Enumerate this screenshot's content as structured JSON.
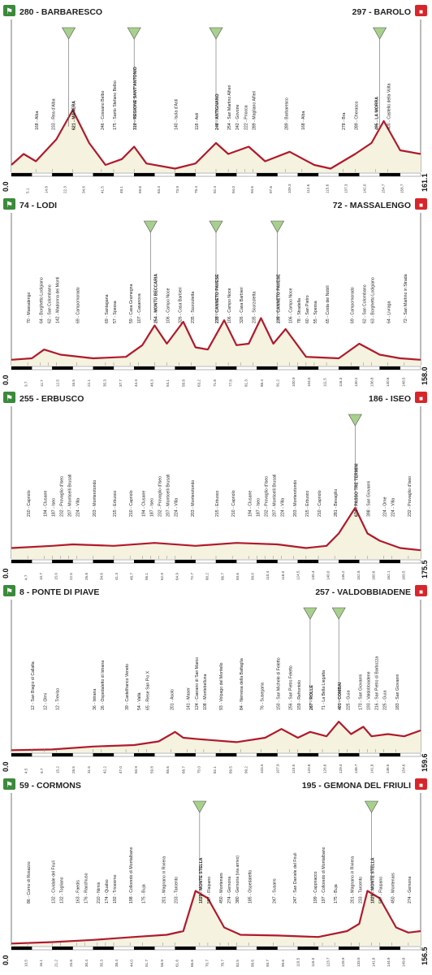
{
  "colors": {
    "fill": "#f5f3df",
    "line": "#b01a2c",
    "start_badge": "#3b8a3b",
    "finish_badge": "#d7262b",
    "gpm_badge": "#a8d08d",
    "ruler": "#000000"
  },
  "chart_data": [
    {
      "type": "area",
      "start": {
        "alt": "280",
        "name": "BARBARESCO"
      },
      "finish": {
        "alt": "297",
        "name": "BAROLO"
      },
      "km_start": "0.0",
      "km_end": "161.1",
      "gpm_x": [
        0.14,
        0.3,
        0.5,
        0.9
      ],
      "profile": [
        [
          0,
          0.1
        ],
        [
          0.03,
          0.25
        ],
        [
          0.06,
          0.15
        ],
        [
          0.11,
          0.45
        ],
        [
          0.15,
          0.85
        ],
        [
          0.19,
          0.4
        ],
        [
          0.23,
          0.1
        ],
        [
          0.27,
          0.18
        ],
        [
          0.3,
          0.35
        ],
        [
          0.33,
          0.12
        ],
        [
          0.4,
          0.05
        ],
        [
          0.45,
          0.12
        ],
        [
          0.5,
          0.4
        ],
        [
          0.53,
          0.25
        ],
        [
          0.58,
          0.35
        ],
        [
          0.62,
          0.15
        ],
        [
          0.68,
          0.28
        ],
        [
          0.74,
          0.1
        ],
        [
          0.78,
          0.05
        ],
        [
          0.84,
          0.25
        ],
        [
          0.88,
          0.4
        ],
        [
          0.91,
          0.7
        ],
        [
          0.95,
          0.3
        ],
        [
          1.0,
          0.25
        ]
      ],
      "labels": [
        {
          "x": 0.06,
          "t": "168 - Alba"
        },
        {
          "x": 0.1,
          "t": "233 - Rea d'Alba"
        },
        {
          "x": 0.15,
          "t": "621 - MANERA",
          "b": true
        },
        {
          "x": 0.22,
          "t": "246 - Cossano Belbo"
        },
        {
          "x": 0.25,
          "t": "175 - Santo Stefano Belbo"
        },
        {
          "x": 0.3,
          "t": "310 - REGIONE SANT'ANTONIO",
          "b": true
        },
        {
          "x": 0.4,
          "t": "140 - Isola d'Asti"
        },
        {
          "x": 0.45,
          "t": "118 - Asti"
        },
        {
          "x": 0.5,
          "t": "246 - ANTIGNANO",
          "b": true
        },
        {
          "x": 0.53,
          "t": "254 - San Martino Alfieri"
        },
        {
          "x": 0.55,
          "t": "242 - Govone"
        },
        {
          "x": 0.57,
          "t": "222 - Priocca"
        },
        {
          "x": 0.59,
          "t": "289 - Magliano Alfieri"
        },
        {
          "x": 0.67,
          "t": "289 - Barbaresco"
        },
        {
          "x": 0.71,
          "t": "168 - Alba"
        },
        {
          "x": 0.81,
          "t": "278 - Bra"
        },
        {
          "x": 0.84,
          "t": "289 - Cherasco"
        },
        {
          "x": 0.89,
          "t": "495 - LA MORRA",
          "b": true
        },
        {
          "x": 0.92,
          "t": "400 - Castello della Volta"
        }
      ],
      "ticks": [
        "5.1",
        "14.8",
        "22.3",
        "34.6",
        "41.5",
        "48.1",
        "59.6",
        "63.3",
        "73.9",
        "78.4",
        "92.4",
        "94.0",
        "94.6",
        "97.6",
        "109.3",
        "112.6",
        "115.6",
        "137.3",
        "142.0",
        "154.7",
        "158.7"
      ]
    },
    {
      "type": "area",
      "start": {
        "alt": "74",
        "name": "LODI"
      },
      "finish": {
        "alt": "72",
        "name": "MASSALENGO"
      },
      "km_start": "0.0",
      "km_end": "158.0",
      "gpm_x": [
        0.34,
        0.5,
        0.65
      ],
      "profile": [
        [
          0,
          0.08
        ],
        [
          0.05,
          0.1
        ],
        [
          0.08,
          0.22
        ],
        [
          0.12,
          0.15
        ],
        [
          0.2,
          0.1
        ],
        [
          0.28,
          0.12
        ],
        [
          0.32,
          0.28
        ],
        [
          0.35,
          0.55
        ],
        [
          0.38,
          0.3
        ],
        [
          0.42,
          0.6
        ],
        [
          0.45,
          0.25
        ],
        [
          0.48,
          0.22
        ],
        [
          0.52,
          0.62
        ],
        [
          0.55,
          0.28
        ],
        [
          0.58,
          0.3
        ],
        [
          0.61,
          0.65
        ],
        [
          0.64,
          0.3
        ],
        [
          0.67,
          0.5
        ],
        [
          0.72,
          0.12
        ],
        [
          0.8,
          0.1
        ],
        [
          0.85,
          0.3
        ],
        [
          0.9,
          0.15
        ],
        [
          0.95,
          0.1
        ],
        [
          1.0,
          0.08
        ]
      ],
      "labels": [
        {
          "x": 0.04,
          "t": "70 - Massalengo"
        },
        {
          "x": 0.07,
          "t": "64 - Borghetto Lodigiano"
        },
        {
          "x": 0.09,
          "t": "62 - San Colombano"
        },
        {
          "x": 0.11,
          "t": "142 - Madonna dei Monti"
        },
        {
          "x": 0.16,
          "t": "69 - Campomorado"
        },
        {
          "x": 0.23,
          "t": "69 - Santagana"
        },
        {
          "x": 0.25,
          "t": "57 - Spessa"
        },
        {
          "x": 0.29,
          "t": "59 - Casa Gramegna"
        },
        {
          "x": 0.31,
          "t": "107 - Casanova"
        },
        {
          "x": 0.35,
          "t": "254 - MONTÙ BECCARIA",
          "b": true
        },
        {
          "x": 0.38,
          "t": "106 - Campo Noce"
        },
        {
          "x": 0.41,
          "t": "326 - Casa Barbieri"
        },
        {
          "x": 0.44,
          "t": "235 - Scorzoletta"
        },
        {
          "x": 0.5,
          "t": "235 - CANNETO PAVESE",
          "b": true
        },
        {
          "x": 0.53,
          "t": "106 - Campo Noce"
        },
        {
          "x": 0.56,
          "t": "326 - Casa Barbieri"
        },
        {
          "x": 0.59,
          "t": "235 - Scorzoletta"
        },
        {
          "x": 0.65,
          "t": "235 - CANNETO PAVESE",
          "b": true
        },
        {
          "x": 0.68,
          "t": "106 - Campo Noce"
        },
        {
          "x": 0.7,
          "t": "78 - Stradella"
        },
        {
          "x": 0.72,
          "t": "60 - San Pietro"
        },
        {
          "x": 0.74,
          "t": "55 - Spessa"
        },
        {
          "x": 0.77,
          "t": "65 - Costa dei Nobili"
        },
        {
          "x": 0.83,
          "t": "69 - Campomorado"
        },
        {
          "x": 0.86,
          "t": "62 - San Colombano"
        },
        {
          "x": 0.88,
          "t": "63 - Borghetto Lodigiano"
        },
        {
          "x": 0.92,
          "t": "64 - Livraga"
        },
        {
          "x": 0.96,
          "t": "72 - San Martino in Strada"
        }
      ],
      "ticks": [
        "3.7",
        "11.7",
        "12.5",
        "16.5",
        "22.1",
        "35.3",
        "37.7",
        "44.3",
        "48.3",
        "54.1",
        "58.8",
        "63.2",
        "71.8",
        "77.8",
        "81.3",
        "88.4",
        "91.2",
        "100.9",
        "104.0",
        "111.5",
        "116.3",
        "130.2",
        "136.8",
        "140.6",
        "148.5"
      ]
    },
    {
      "type": "area",
      "start": {
        "alt": "255",
        "name": "ERBUSCO"
      },
      "finish": {
        "alt": "186",
        "name": "ISEO"
      },
      "km_start": "0.0",
      "km_end": "175.5",
      "gpm_x": [
        0.84
      ],
      "profile": [
        [
          0,
          0.15
        ],
        [
          0.1,
          0.18
        ],
        [
          0.15,
          0.2
        ],
        [
          0.25,
          0.18
        ],
        [
          0.35,
          0.22
        ],
        [
          0.45,
          0.18
        ],
        [
          0.55,
          0.22
        ],
        [
          0.65,
          0.2
        ],
        [
          0.72,
          0.15
        ],
        [
          0.77,
          0.18
        ],
        [
          0.8,
          0.35
        ],
        [
          0.84,
          0.7
        ],
        [
          0.87,
          0.35
        ],
        [
          0.9,
          0.25
        ],
        [
          0.95,
          0.15
        ],
        [
          1.0,
          0.12
        ]
      ],
      "labels": [
        {
          "x": 0.04,
          "t": "210 - Capriolo"
        },
        {
          "x": 0.08,
          "t": "194 - Clusane"
        },
        {
          "x": 0.1,
          "t": "187 - Iseo"
        },
        {
          "x": 0.12,
          "t": "232 - Provaglio d'Iseo"
        },
        {
          "x": 0.14,
          "t": "207 - Monticelli Brusati"
        },
        {
          "x": 0.16,
          "t": "224 - Villa"
        },
        {
          "x": 0.2,
          "t": "203 - Monterotondo"
        },
        {
          "x": 0.25,
          "t": "215 - Erbusco"
        },
        {
          "x": 0.29,
          "t": "210 - Capriolo"
        },
        {
          "x": 0.32,
          "t": "194 - Clusane"
        },
        {
          "x": 0.34,
          "t": "187 - Iseo"
        },
        {
          "x": 0.36,
          "t": "232 - Provaglio d'Iseo"
        },
        {
          "x": 0.38,
          "t": "207 - Monticelli Brusati"
        },
        {
          "x": 0.4,
          "t": "224 - Villa"
        },
        {
          "x": 0.44,
          "t": "203 - Monterotondo"
        },
        {
          "x": 0.5,
          "t": "215 - Erbusco"
        },
        {
          "x": 0.54,
          "t": "210 - Capriolo"
        },
        {
          "x": 0.58,
          "t": "194 - Clusane"
        },
        {
          "x": 0.6,
          "t": "187 - Iseo"
        },
        {
          "x": 0.62,
          "t": "232 - Provaglio d'Iseo"
        },
        {
          "x": 0.64,
          "t": "207 - Monticelli Brusati"
        },
        {
          "x": 0.66,
          "t": "224 - Villa"
        },
        {
          "x": 0.69,
          "t": "203 - Monterotondo"
        },
        {
          "x": 0.72,
          "t": "215 - Erbusco"
        },
        {
          "x": 0.75,
          "t": "210 - Capriolo"
        },
        {
          "x": 0.79,
          "t": "281 - Bevagilio"
        },
        {
          "x": 0.84,
          "t": "674 - PASSO TRE TERMINI",
          "b": true
        },
        {
          "x": 0.87,
          "t": "398 - San Giovanni"
        },
        {
          "x": 0.91,
          "t": "224 - Ome"
        },
        {
          "x": 0.93,
          "t": "224 - Villa"
        },
        {
          "x": 0.97,
          "t": "232 - Provaglio d'Iseo"
        }
      ],
      "ticks": [
        "4.7",
        "10.7",
        "15.0",
        "22.5",
        "26.8",
        "34.6",
        "41.3",
        "48.7",
        "56.1",
        "62.9",
        "64.9",
        "72.7",
        "80.2",
        "86.7",
        "93.6",
        "99.0",
        "110.4",
        "118.0",
        "124.5",
        "130.4",
        "140.0",
        "146.2",
        "152.8",
        "160.6",
        "162.1",
        "169.5"
      ]
    },
    {
      "type": "area",
      "start": {
        "alt": "8",
        "name": "PONTE DI PIAVE"
      },
      "finish": {
        "alt": "257",
        "name": "VALDOBBIADENE"
      },
      "km_start": "0.0",
      "km_end": "159.6",
      "gpm_x": [
        0.73,
        0.8
      ],
      "profile": [
        [
          0,
          0.03
        ],
        [
          0.1,
          0.04
        ],
        [
          0.2,
          0.08
        ],
        [
          0.3,
          0.1
        ],
        [
          0.36,
          0.15
        ],
        [
          0.4,
          0.28
        ],
        [
          0.42,
          0.2
        ],
        [
          0.46,
          0.18
        ],
        [
          0.55,
          0.14
        ],
        [
          0.62,
          0.2
        ],
        [
          0.66,
          0.32
        ],
        [
          0.7,
          0.2
        ],
        [
          0.73,
          0.28
        ],
        [
          0.77,
          0.22
        ],
        [
          0.8,
          0.42
        ],
        [
          0.83,
          0.25
        ],
        [
          0.86,
          0.35
        ],
        [
          0.88,
          0.22
        ],
        [
          0.92,
          0.25
        ],
        [
          0.96,
          0.22
        ],
        [
          1.0,
          0.3
        ]
      ],
      "labels": [
        {
          "x": 0.05,
          "t": "12 - San Biagio di Callalta"
        },
        {
          "x": 0.08,
          "t": "12 - Olmi"
        },
        {
          "x": 0.11,
          "t": "12 - Treviso"
        },
        {
          "x": 0.2,
          "t": "36 - Istrana"
        },
        {
          "x": 0.22,
          "t": "26 - Ospedaletto di Istrana"
        },
        {
          "x": 0.28,
          "t": "39 - Castelfranco Veneto"
        },
        {
          "x": 0.31,
          "t": "54 - Vallà"
        },
        {
          "x": 0.33,
          "t": "65 - Riese San Pio X"
        },
        {
          "x": 0.39,
          "t": "201 - Asolo"
        },
        {
          "x": 0.43,
          "t": "141 - Maser"
        },
        {
          "x": 0.45,
          "t": "124 - Caerano di San Marco"
        },
        {
          "x": 0.47,
          "t": "108 - Montebelluna"
        },
        {
          "x": 0.51,
          "t": "93 - Volpago del Montello"
        },
        {
          "x": 0.56,
          "t": "84 - Nervesa della Battaglia"
        },
        {
          "x": 0.61,
          "t": "76 - Susegana"
        },
        {
          "x": 0.65,
          "t": "150 - San Michele di Feletto"
        },
        {
          "x": 0.68,
          "t": "256 - San Pietro Feletto"
        },
        {
          "x": 0.7,
          "t": "159 - Refrontolo"
        },
        {
          "x": 0.73,
          "t": "267 - ROLLE",
          "b": true
        },
        {
          "x": 0.76,
          "t": "71 - La Bella Liegatta"
        },
        {
          "x": 0.8,
          "t": "401 - COMBAI",
          "b": true
        },
        {
          "x": 0.82,
          "t": "225 - Guia"
        },
        {
          "x": 0.85,
          "t": "170 - San Giovanni"
        },
        {
          "x": 0.87,
          "t": "193 - Valdobbiadene"
        },
        {
          "x": 0.89,
          "t": "216 - San Pietro di Barbozza"
        },
        {
          "x": 0.91,
          "t": "225 - Guia"
        },
        {
          "x": 0.94,
          "t": "183 - San Giovanni"
        }
      ],
      "ticks": [
        "4.5",
        "9.7",
        "15.2",
        "28.5",
        "31.5",
        "42.2",
        "47.0",
        "50.9",
        "59.8",
        "65.6",
        "68.7",
        "75.0",
        "82.1",
        "89.5",
        "99.2",
        "103.5",
        "107.9",
        "110.5",
        "120.8",
        "126.6",
        "129.4",
        "138.7",
        "141.8",
        "146.5",
        "154.6"
      ]
    },
    {
      "type": "area",
      "start": {
        "alt": "59",
        "name": "CORMONS"
      },
      "finish": {
        "alt": "195",
        "name": "GEMONA DEL FRIULI"
      },
      "km_start": "0.0",
      "km_end": "156.5",
      "gpm_x": [
        0.46,
        0.88
      ],
      "profile": [
        [
          0,
          0.03
        ],
        [
          0.1,
          0.05
        ],
        [
          0.2,
          0.08
        ],
        [
          0.3,
          0.12
        ],
        [
          0.38,
          0.15
        ],
        [
          0.42,
          0.2
        ],
        [
          0.45,
          0.75
        ],
        [
          0.48,
          0.65
        ],
        [
          0.52,
          0.25
        ],
        [
          0.56,
          0.15
        ],
        [
          0.65,
          0.14
        ],
        [
          0.75,
          0.12
        ],
        [
          0.82,
          0.2
        ],
        [
          0.85,
          0.3
        ],
        [
          0.87,
          0.75
        ],
        [
          0.9,
          0.65
        ],
        [
          0.94,
          0.25
        ],
        [
          0.97,
          0.18
        ],
        [
          1.0,
          0.2
        ]
      ],
      "labels": [
        {
          "x": 0.04,
          "t": "86 - Corno di Rosazzo"
        },
        {
          "x": 0.1,
          "t": "132 - Cividale del Friuli"
        },
        {
          "x": 0.12,
          "t": "132 - Togliano"
        },
        {
          "x": 0.16,
          "t": "163 - Faedis"
        },
        {
          "x": 0.18,
          "t": "176 - Racchiuso"
        },
        {
          "x": 0.21,
          "t": "210 - Nimis"
        },
        {
          "x": 0.23,
          "t": "174 - Qualso"
        },
        {
          "x": 0.25,
          "t": "192 - Tricesimo"
        },
        {
          "x": 0.29,
          "t": "198 - Colloredo di Montalbano"
        },
        {
          "x": 0.32,
          "t": "175 - Buja"
        },
        {
          "x": 0.37,
          "t": "201 - Magnano in Riviera"
        },
        {
          "x": 0.4,
          "t": "233 - Tarcento"
        },
        {
          "x": 0.46,
          "t": "1029 - MONTE STELLA",
          "b": true
        },
        {
          "x": 0.48,
          "t": "587 - Flaipano"
        },
        {
          "x": 0.51,
          "t": "450 - Montenars"
        },
        {
          "x": 0.53,
          "t": "274 - Gemona"
        },
        {
          "x": 0.55,
          "t": "380 - Gemona (via arrivo)"
        },
        {
          "x": 0.58,
          "t": "185 - Ospedaletto"
        },
        {
          "x": 0.64,
          "t": "247 - Susans"
        },
        {
          "x": 0.69,
          "t": "247 - San Daniele del Friuli"
        },
        {
          "x": 0.74,
          "t": "199 - Cappriacco"
        },
        {
          "x": 0.76,
          "t": "197 - Colloredo di Montalbano"
        },
        {
          "x": 0.79,
          "t": "175 - Buja"
        },
        {
          "x": 0.83,
          "t": "201 - Magnano in Riviera"
        },
        {
          "x": 0.85,
          "t": "233 - Tarcento"
        },
        {
          "x": 0.88,
          "t": "1029 - MONTE STELLA",
          "b": true
        },
        {
          "x": 0.9,
          "t": "587 - Flaipano"
        },
        {
          "x": 0.93,
          "t": "450 - Montenars"
        },
        {
          "x": 0.97,
          "t": "274 - Gemona"
        }
      ],
      "ticks": [
        "10.5",
        "16.1",
        "21.2",
        "25.8",
        "30.4",
        "35.3",
        "38.4",
        "44.0",
        "51.7",
        "56.9",
        "61.6",
        "66.6",
        "70.7",
        "78.7",
        "82.5",
        "88.6",
        "93.7",
        "99.6",
        "110.5",
        "115.0",
        "123.7",
        "128.9",
        "133.5",
        "141.8",
        "144.9",
        "149.8"
      ]
    }
  ]
}
